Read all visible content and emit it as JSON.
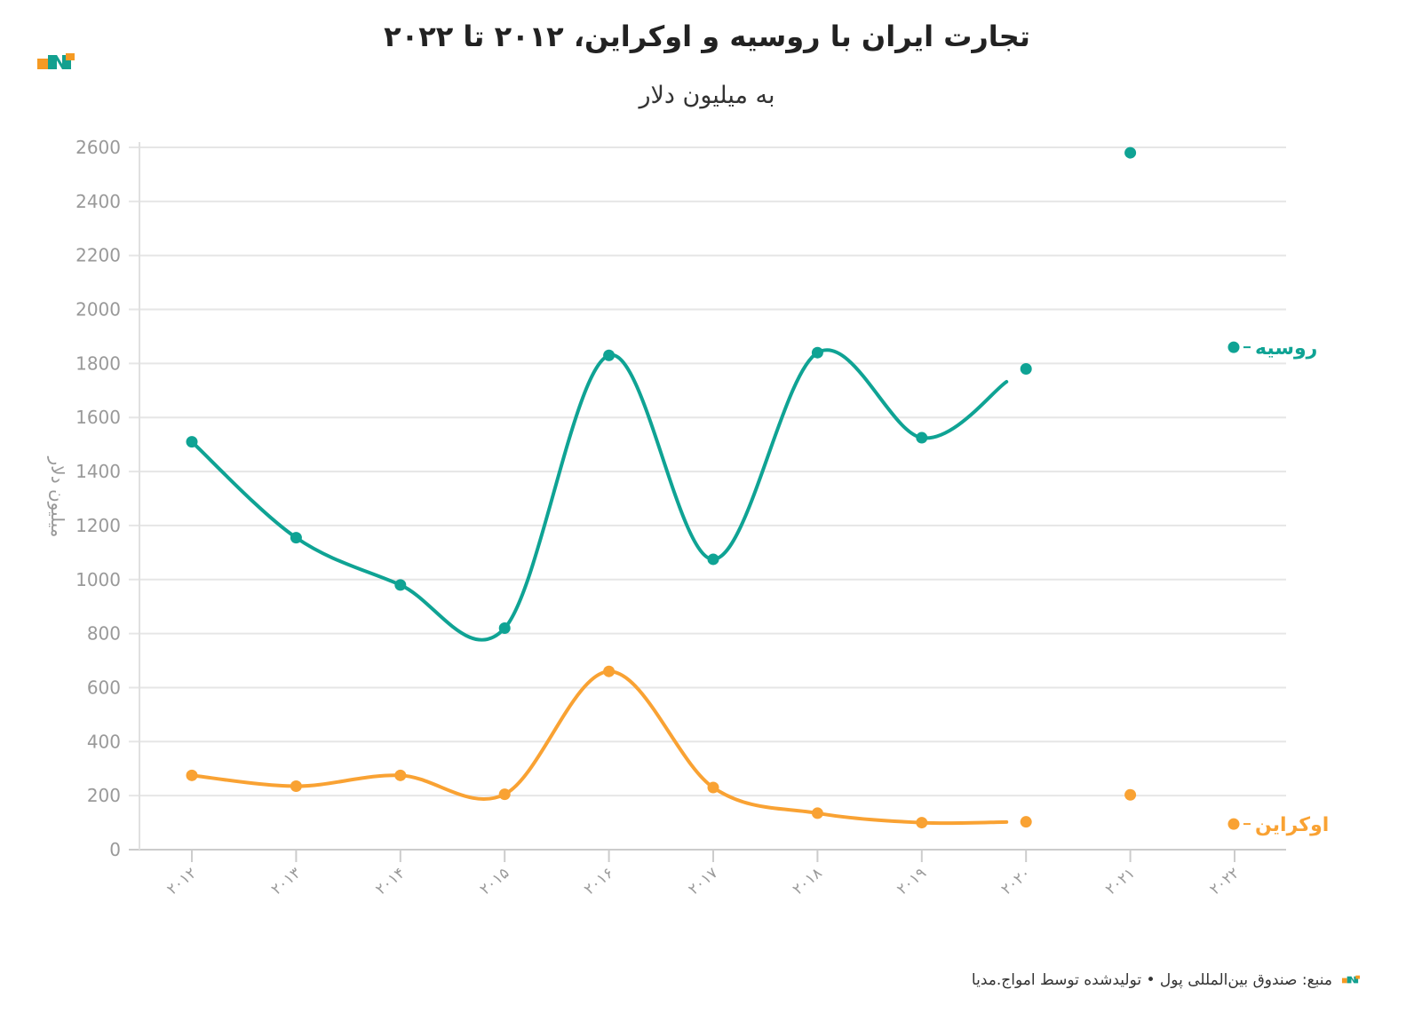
{
  "header": {
    "title": "تجارت ایران با روسیه و اوکراین، ۲۰۱۲ تا ۲۰۲۲",
    "subtitle": "به میلیون دلار"
  },
  "footer": {
    "source_text": "منبع: صندوق بین‌المللی پول • تولیدشده توسط امواج.مدیا"
  },
  "colors": {
    "russia": "#0fa394",
    "ukraine": "#f9a233",
    "logo_orange": "#f59a23",
    "logo_teal": "#13a08f"
  },
  "chart_data": {
    "type": "line",
    "title": "تجارت ایران با روسیه و اوکراین، ۲۰۱۲ تا ۲۰۲۲",
    "subtitle": "به میلیون دلار",
    "xlabel": "",
    "ylabel": "میلیون دلار",
    "categories": [
      "۲۰۱۲",
      "۲۰۱۳",
      "۲۰۱۴",
      "۲۰۱۵",
      "۲۰۱۶",
      "۲۰۱۷",
      "۲۰۱۸",
      "۲۰۱۹",
      "۲۰۲۰",
      "۲۰۲۱",
      "۲۰۲۲"
    ],
    "ylim": [
      0,
      2600
    ],
    "yticks": [
      0,
      200,
      400,
      600,
      800,
      1000,
      1200,
      1400,
      1600,
      1800,
      2000,
      2200,
      2400,
      2600
    ],
    "grid": true,
    "legend": "right",
    "series": [
      {
        "name": "روسیه",
        "color": "#0fa394",
        "values": [
          1510,
          1155,
          980,
          820,
          1830,
          1075,
          1840,
          1525,
          1780,
          2580,
          null
        ]
      },
      {
        "name": "اوکراین",
        "color": "#f9a233",
        "values": [
          275,
          235,
          275,
          205,
          660,
          230,
          135,
          100,
          103,
          203,
          null
        ]
      }
    ]
  }
}
